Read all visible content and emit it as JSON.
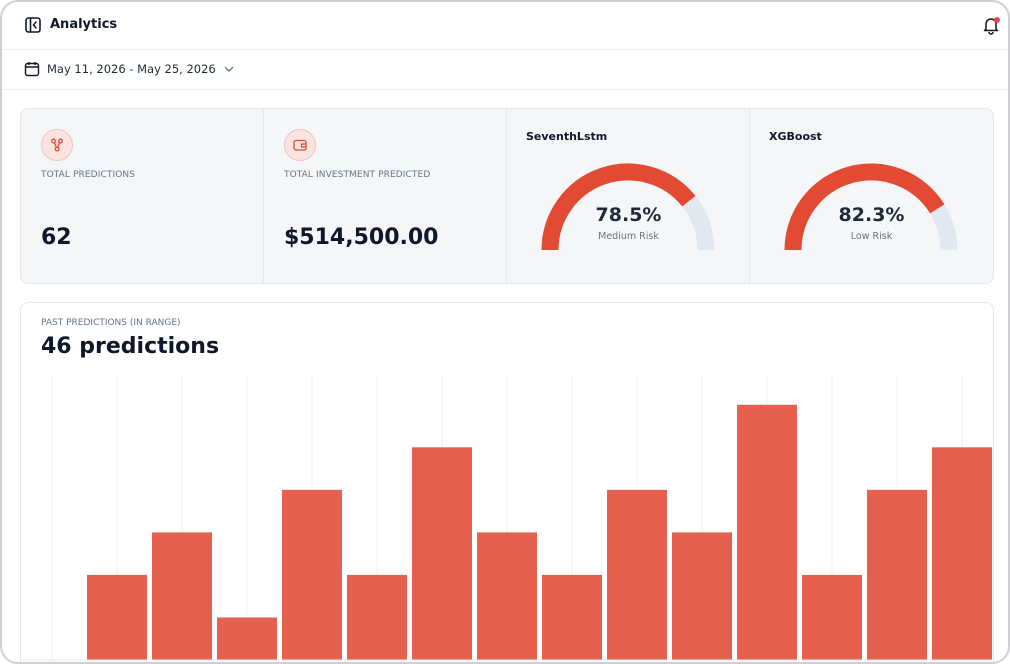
{
  "header": {
    "title": "Analytics",
    "toggle_icon": "sidebar-toggle-icon",
    "notification_icon": "bell-icon",
    "notification_dot_color": "#ef4444"
  },
  "date_range": {
    "label": "May 11, 2026 - May 25, 2026",
    "icon": "calendar-icon"
  },
  "stats": [
    {
      "icon": "network-icon",
      "label": "TOTAL PREDICTIONS",
      "value": "62"
    },
    {
      "icon": "wallet-icon",
      "label": "TOTAL INVESTMENT PREDICTED",
      "value": "$514,500.00"
    }
  ],
  "gauges": [
    {
      "model": "SeventhLstm",
      "percent_text": "78.5%",
      "value": 78.5,
      "risk": "Medium Risk"
    },
    {
      "model": "XGBoost",
      "percent_text": "82.3%",
      "value": 82.3,
      "risk": "Low Risk"
    }
  ],
  "colors": {
    "accent": "#e24a34",
    "bar": "#e5604f",
    "gauge_track": "#e2e8f0",
    "icon_bg": "#fbe3df"
  },
  "chart": {
    "label": "PAST PREDICTIONS (IN RANGE)",
    "title": "46 predictions"
  },
  "chart_data": {
    "type": "bar",
    "title": "",
    "values": [
      0,
      2,
      3,
      1,
      4,
      2,
      5,
      3,
      2,
      4,
      3,
      6,
      2,
      4,
      5
    ],
    "ylim": [
      0,
      6.7
    ],
    "grid": true,
    "color": "#e5604f"
  }
}
